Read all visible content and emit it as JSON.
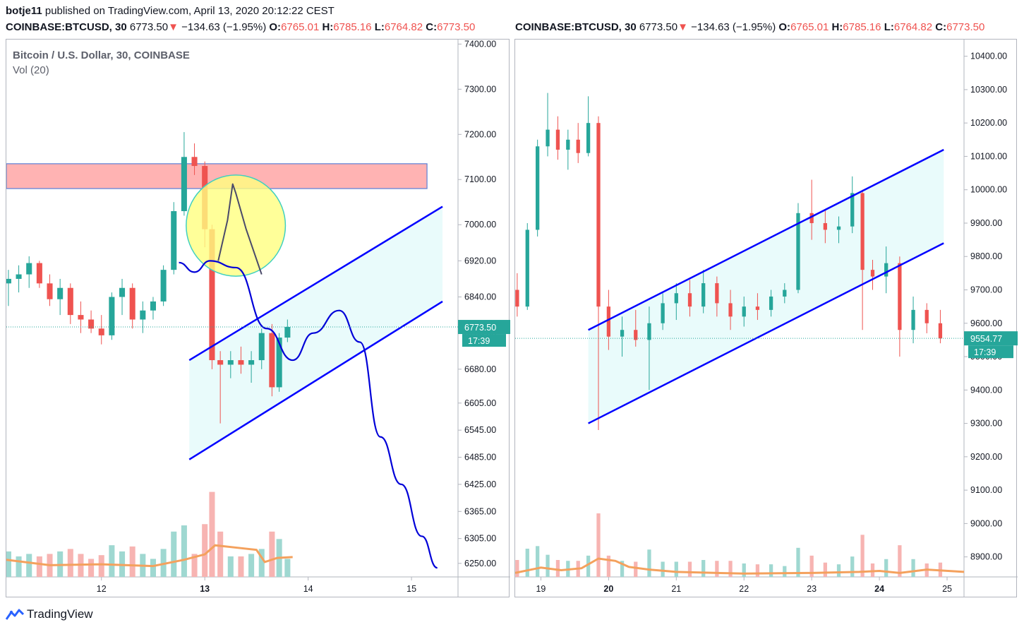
{
  "header": {
    "author": "botje11",
    "published_text": "published on TradingView.com, April 13, 2020 20:12:22 CEST"
  },
  "ohlc": {
    "symbol": "COINBASE:BTCUSD, 30",
    "last": "6773.50",
    "arrow": "▼",
    "change": "−134.63 (−1.95%)",
    "o_label": "O:",
    "o": "6765.01",
    "h_label": "H:",
    "h": "6785.16",
    "l_label": "L:",
    "l": "6764.82",
    "c_label": "C:",
    "c": "6773.50"
  },
  "legend": {
    "title": "Bitcoin / U.S. Dollar, 30, COINBASE",
    "vol": "Vol (20)"
  },
  "footer": {
    "brand": "TradingView"
  },
  "colors": {
    "up": "#26a69a",
    "down": "#ef5350",
    "channel_line": "#0000ff",
    "channel_fill": "#e9fbfb",
    "zone_fill": "#ffb3b3",
    "circle_fill": "#ffff80",
    "volume_ma": "#f4a15d",
    "price_tag": "#26a69a"
  },
  "chart_data": [
    {
      "type": "candlestick",
      "xlabel": "",
      "ylabel": "",
      "ylim": [
        6220,
        7410
      ],
      "y_ticks": [
        7400.0,
        7300.0,
        7200.0,
        7100.0,
        7000.0,
        6920.0,
        6840.0,
        6760.0,
        6680.0,
        6605.0,
        6545.0,
        6485.0,
        6425.0,
        6365.0,
        6305.0,
        6250.0
      ],
      "y_tick_labels": [
        "7400.00",
        "7300.00",
        "7200.00",
        "7100.00",
        "7000.00",
        "6920.00",
        "6840.00",
        "6760.00",
        "6680.00",
        "6605.00",
        "6545.00",
        "6485.00",
        "6425.00",
        "6365.00",
        "6305.00",
        "6250.00"
      ],
      "x_ticks": [
        {
          "value": 12,
          "label": "12",
          "bold": false
        },
        {
          "value": 13,
          "label": "13",
          "bold": true
        },
        {
          "value": 14,
          "label": "14",
          "bold": false
        },
        {
          "value": 15,
          "label": "15",
          "bold": false
        }
      ],
      "xlim": [
        11.08,
        15.45
      ],
      "last_price": "6773.50",
      "countdown": "17:39",
      "resistance_zone": {
        "x": [
          11.08,
          15.15
        ],
        "y": [
          7080,
          7135
        ]
      },
      "circle": {
        "cx": 13.3,
        "cy": 6998,
        "rx_days": 0.48,
        "ry_price": 112
      },
      "channel": {
        "upper": [
          [
            12.85,
            6700
          ],
          [
            15.3,
            7040
          ]
        ],
        "lower": [
          [
            12.85,
            6480
          ],
          [
            15.3,
            6830
          ]
        ],
        "fill_right": 15.3
      },
      "projection_path": [
        [
          12.75,
          6916
        ],
        [
          12.9,
          6895
        ],
        [
          13.05,
          6920
        ],
        [
          13.3,
          6905
        ],
        [
          13.6,
          6770
        ],
        [
          13.85,
          6700
        ],
        [
          14.05,
          6760
        ],
        [
          14.3,
          6810
        ],
        [
          14.5,
          6740
        ],
        [
          14.7,
          6530
        ],
        [
          14.9,
          6425
        ],
        [
          15.1,
          6310
        ],
        [
          15.25,
          6240
        ]
      ],
      "grey_path": [
        [
          13.13,
          6920
        ],
        [
          13.22,
          7010
        ],
        [
          13.27,
          7090
        ],
        [
          13.3,
          7070
        ],
        [
          13.4,
          6990
        ],
        [
          13.55,
          6890
        ]
      ],
      "ohlc_series": [
        {
          "x": 11.1,
          "o": 6870,
          "h": 6900,
          "l": 6820,
          "c": 6880
        },
        {
          "x": 11.2,
          "o": 6880,
          "h": 6910,
          "l": 6850,
          "c": 6890
        },
        {
          "x": 11.3,
          "o": 6890,
          "h": 6930,
          "l": 6860,
          "c": 6915
        },
        {
          "x": 11.4,
          "o": 6915,
          "h": 6920,
          "l": 6860,
          "c": 6870
        },
        {
          "x": 11.5,
          "o": 6870,
          "h": 6890,
          "l": 6820,
          "c": 6835
        },
        {
          "x": 11.6,
          "o": 6835,
          "h": 6880,
          "l": 6800,
          "c": 6860
        },
        {
          "x": 11.7,
          "o": 6860,
          "h": 6870,
          "l": 6780,
          "c": 6800
        },
        {
          "x": 11.8,
          "o": 6800,
          "h": 6830,
          "l": 6760,
          "c": 6790
        },
        {
          "x": 11.9,
          "o": 6790,
          "h": 6810,
          "l": 6760,
          "c": 6770
        },
        {
          "x": 12.0,
          "o": 6770,
          "h": 6800,
          "l": 6735,
          "c": 6755
        },
        {
          "x": 12.1,
          "o": 6755,
          "h": 6850,
          "l": 6745,
          "c": 6840
        },
        {
          "x": 12.2,
          "o": 6840,
          "h": 6880,
          "l": 6800,
          "c": 6860
        },
        {
          "x": 12.3,
          "o": 6860,
          "h": 6870,
          "l": 6770,
          "c": 6790
        },
        {
          "x": 12.4,
          "o": 6790,
          "h": 6830,
          "l": 6760,
          "c": 6810
        },
        {
          "x": 12.5,
          "o": 6810,
          "h": 6840,
          "l": 6790,
          "c": 6830
        },
        {
          "x": 12.6,
          "o": 6830,
          "h": 6910,
          "l": 6820,
          "c": 6900
        },
        {
          "x": 12.7,
          "o": 6900,
          "h": 7050,
          "l": 6890,
          "c": 7030
        },
        {
          "x": 12.8,
          "o": 7030,
          "h": 7205,
          "l": 7020,
          "c": 7150
        },
        {
          "x": 12.9,
          "o": 7150,
          "h": 7180,
          "l": 7110,
          "c": 7130
        },
        {
          "x": 13.0,
          "o": 7130,
          "h": 7140,
          "l": 6950,
          "c": 6990
        },
        {
          "x": 13.07,
          "o": 6990,
          "h": 7000,
          "l": 6680,
          "c": 6700
        },
        {
          "x": 13.15,
          "o": 6700,
          "h": 6720,
          "l": 6560,
          "c": 6690
        },
        {
          "x": 13.25,
          "o": 6690,
          "h": 6720,
          "l": 6660,
          "c": 6700
        },
        {
          "x": 13.35,
          "o": 6700,
          "h": 6730,
          "l": 6670,
          "c": 6690
        },
        {
          "x": 13.45,
          "o": 6690,
          "h": 6720,
          "l": 6650,
          "c": 6700
        },
        {
          "x": 13.55,
          "o": 6700,
          "h": 6770,
          "l": 6680,
          "c": 6760
        },
        {
          "x": 13.65,
          "o": 6760,
          "h": 6780,
          "l": 6620,
          "c": 6640
        },
        {
          "x": 13.72,
          "o": 6640,
          "h": 6760,
          "l": 6630,
          "c": 6750
        },
        {
          "x": 13.8,
          "o": 6750,
          "h": 6790,
          "l": 6740,
          "c": 6773.5
        }
      ],
      "volume_ma": [
        [
          11.08,
          6258
        ],
        [
          11.5,
          6246
        ],
        [
          12.0,
          6248
        ],
        [
          12.5,
          6244
        ],
        [
          12.8,
          6258
        ],
        [
          13.0,
          6270
        ],
        [
          13.1,
          6290
        ],
        [
          13.3,
          6285
        ],
        [
          13.5,
          6280
        ],
        [
          13.58,
          6253
        ],
        [
          13.7,
          6262
        ],
        [
          13.85,
          6264
        ]
      ]
    },
    {
      "type": "candlestick",
      "xlabel": "",
      "ylabel": "",
      "ylim": [
        8840,
        10450
      ],
      "y_ticks": [
        10400.0,
        10300.0,
        10200.0,
        10100.0,
        10000.0,
        9900.0,
        9800.0,
        9700.0,
        9600.0,
        9500.0,
        9400.0,
        9300.0,
        9200.0,
        9100.0,
        9000.0,
        8900.0
      ],
      "y_tick_labels": [
        "10400.00",
        "10300.00",
        "10200.00",
        "10100.00",
        "10000.00",
        "9900.00",
        "9800.00",
        "9700.00",
        "9600.00",
        "9500.00",
        "9400.00",
        "9300.00",
        "9200.00",
        "9100.00",
        "9000.00",
        "8900.00"
      ],
      "x_ticks": [
        {
          "value": 19,
          "label": "19",
          "bold": false
        },
        {
          "value": 20,
          "label": "20",
          "bold": true
        },
        {
          "value": 21,
          "label": "21",
          "bold": false
        },
        {
          "value": 22,
          "label": "22",
          "bold": false
        },
        {
          "value": 23,
          "label": "23",
          "bold": false
        },
        {
          "value": 24,
          "label": "24",
          "bold": true
        },
        {
          "value": 25,
          "label": "25",
          "bold": false
        }
      ],
      "xlim": [
        18.62,
        25.25
      ],
      "last_price": "9554.77",
      "countdown": "17:39",
      "channel": {
        "upper": [
          [
            19.7,
            9580
          ],
          [
            22.5,
            10010
          ]
        ],
        "lower": [
          [
            19.7,
            9300
          ],
          [
            22.5,
            9720
          ]
        ],
        "fill_right": 24.95,
        "upper_end": [
          24.95,
          10120
        ],
        "lower_end": [
          24.95,
          9840
        ]
      },
      "ohlc_series": [
        {
          "x": 18.65,
          "o": 9700,
          "h": 9750,
          "l": 9620,
          "c": 9650
        },
        {
          "x": 18.8,
          "o": 9650,
          "h": 9900,
          "l": 9640,
          "c": 9880
        },
        {
          "x": 18.95,
          "o": 9880,
          "h": 10150,
          "l": 9860,
          "c": 10130
        },
        {
          "x": 19.1,
          "o": 10130,
          "h": 10290,
          "l": 10100,
          "c": 10180
        },
        {
          "x": 19.25,
          "o": 10180,
          "h": 10220,
          "l": 10090,
          "c": 10120
        },
        {
          "x": 19.4,
          "o": 10120,
          "h": 10180,
          "l": 10060,
          "c": 10150
        },
        {
          "x": 19.55,
          "o": 10150,
          "h": 10200,
          "l": 10080,
          "c": 10110
        },
        {
          "x": 19.7,
          "o": 10110,
          "h": 10280,
          "l": 10100,
          "c": 10200
        },
        {
          "x": 19.85,
          "o": 10200,
          "h": 10220,
          "l": 9280,
          "c": 9650
        },
        {
          "x": 20.0,
          "o": 9650,
          "h": 9700,
          "l": 9520,
          "c": 9560
        },
        {
          "x": 20.2,
          "o": 9560,
          "h": 9620,
          "l": 9500,
          "c": 9580
        },
        {
          "x": 20.4,
          "o": 9580,
          "h": 9640,
          "l": 9530,
          "c": 9550
        },
        {
          "x": 20.6,
          "o": 9550,
          "h": 9650,
          "l": 9400,
          "c": 9600
        },
        {
          "x": 20.8,
          "o": 9600,
          "h": 9690,
          "l": 9580,
          "c": 9660
        },
        {
          "x": 21.0,
          "o": 9660,
          "h": 9720,
          "l": 9610,
          "c": 9690
        },
        {
          "x": 21.2,
          "o": 9690,
          "h": 9730,
          "l": 9620,
          "c": 9650
        },
        {
          "x": 21.4,
          "o": 9650,
          "h": 9760,
          "l": 9630,
          "c": 9720
        },
        {
          "x": 21.6,
          "o": 9720,
          "h": 9740,
          "l": 9620,
          "c": 9660
        },
        {
          "x": 21.8,
          "o": 9660,
          "h": 9700,
          "l": 9580,
          "c": 9620
        },
        {
          "x": 22.0,
          "o": 9620,
          "h": 9680,
          "l": 9590,
          "c": 9650
        },
        {
          "x": 22.2,
          "o": 9650,
          "h": 9690,
          "l": 9610,
          "c": 9640
        },
        {
          "x": 22.4,
          "o": 9640,
          "h": 9700,
          "l": 9620,
          "c": 9680
        },
        {
          "x": 22.6,
          "o": 9680,
          "h": 9720,
          "l": 9660,
          "c": 9700
        },
        {
          "x": 22.8,
          "o": 9700,
          "h": 9960,
          "l": 9690,
          "c": 9930
        },
        {
          "x": 23.0,
          "o": 9930,
          "h": 10030,
          "l": 9850,
          "c": 9900
        },
        {
          "x": 23.2,
          "o": 9900,
          "h": 9940,
          "l": 9840,
          "c": 9880
        },
        {
          "x": 23.4,
          "o": 9880,
          "h": 9920,
          "l": 9840,
          "c": 9890
        },
        {
          "x": 23.6,
          "o": 9890,
          "h": 10040,
          "l": 9870,
          "c": 9990
        },
        {
          "x": 23.75,
          "o": 9990,
          "h": 10000,
          "l": 9580,
          "c": 9760
        },
        {
          "x": 23.9,
          "o": 9760,
          "h": 9790,
          "l": 9700,
          "c": 9740
        },
        {
          "x": 24.1,
          "o": 9740,
          "h": 9830,
          "l": 9690,
          "c": 9780
        },
        {
          "x": 24.3,
          "o": 9780,
          "h": 9800,
          "l": 9500,
          "c": 9580
        },
        {
          "x": 24.5,
          "o": 9580,
          "h": 9680,
          "l": 9540,
          "c": 9640
        },
        {
          "x": 24.7,
          "o": 9640,
          "h": 9660,
          "l": 9570,
          "c": 9600
        },
        {
          "x": 24.9,
          "o": 9600,
          "h": 9640,
          "l": 9540,
          "c": 9554.77
        }
      ],
      "volume_ma": [
        [
          18.62,
          8852
        ],
        [
          19.0,
          8868
        ],
        [
          19.3,
          8860
        ],
        [
          19.6,
          8866
        ],
        [
          19.85,
          8895
        ],
        [
          20.1,
          8888
        ],
        [
          20.3,
          8870
        ],
        [
          20.6,
          8862
        ],
        [
          21.0,
          8855
        ],
        [
          22.0,
          8850
        ],
        [
          23.0,
          8852
        ],
        [
          23.7,
          8855
        ],
        [
          24.0,
          8858
        ],
        [
          24.3,
          8852
        ],
        [
          24.7,
          8862
        ],
        [
          25.25,
          8855
        ]
      ]
    }
  ]
}
